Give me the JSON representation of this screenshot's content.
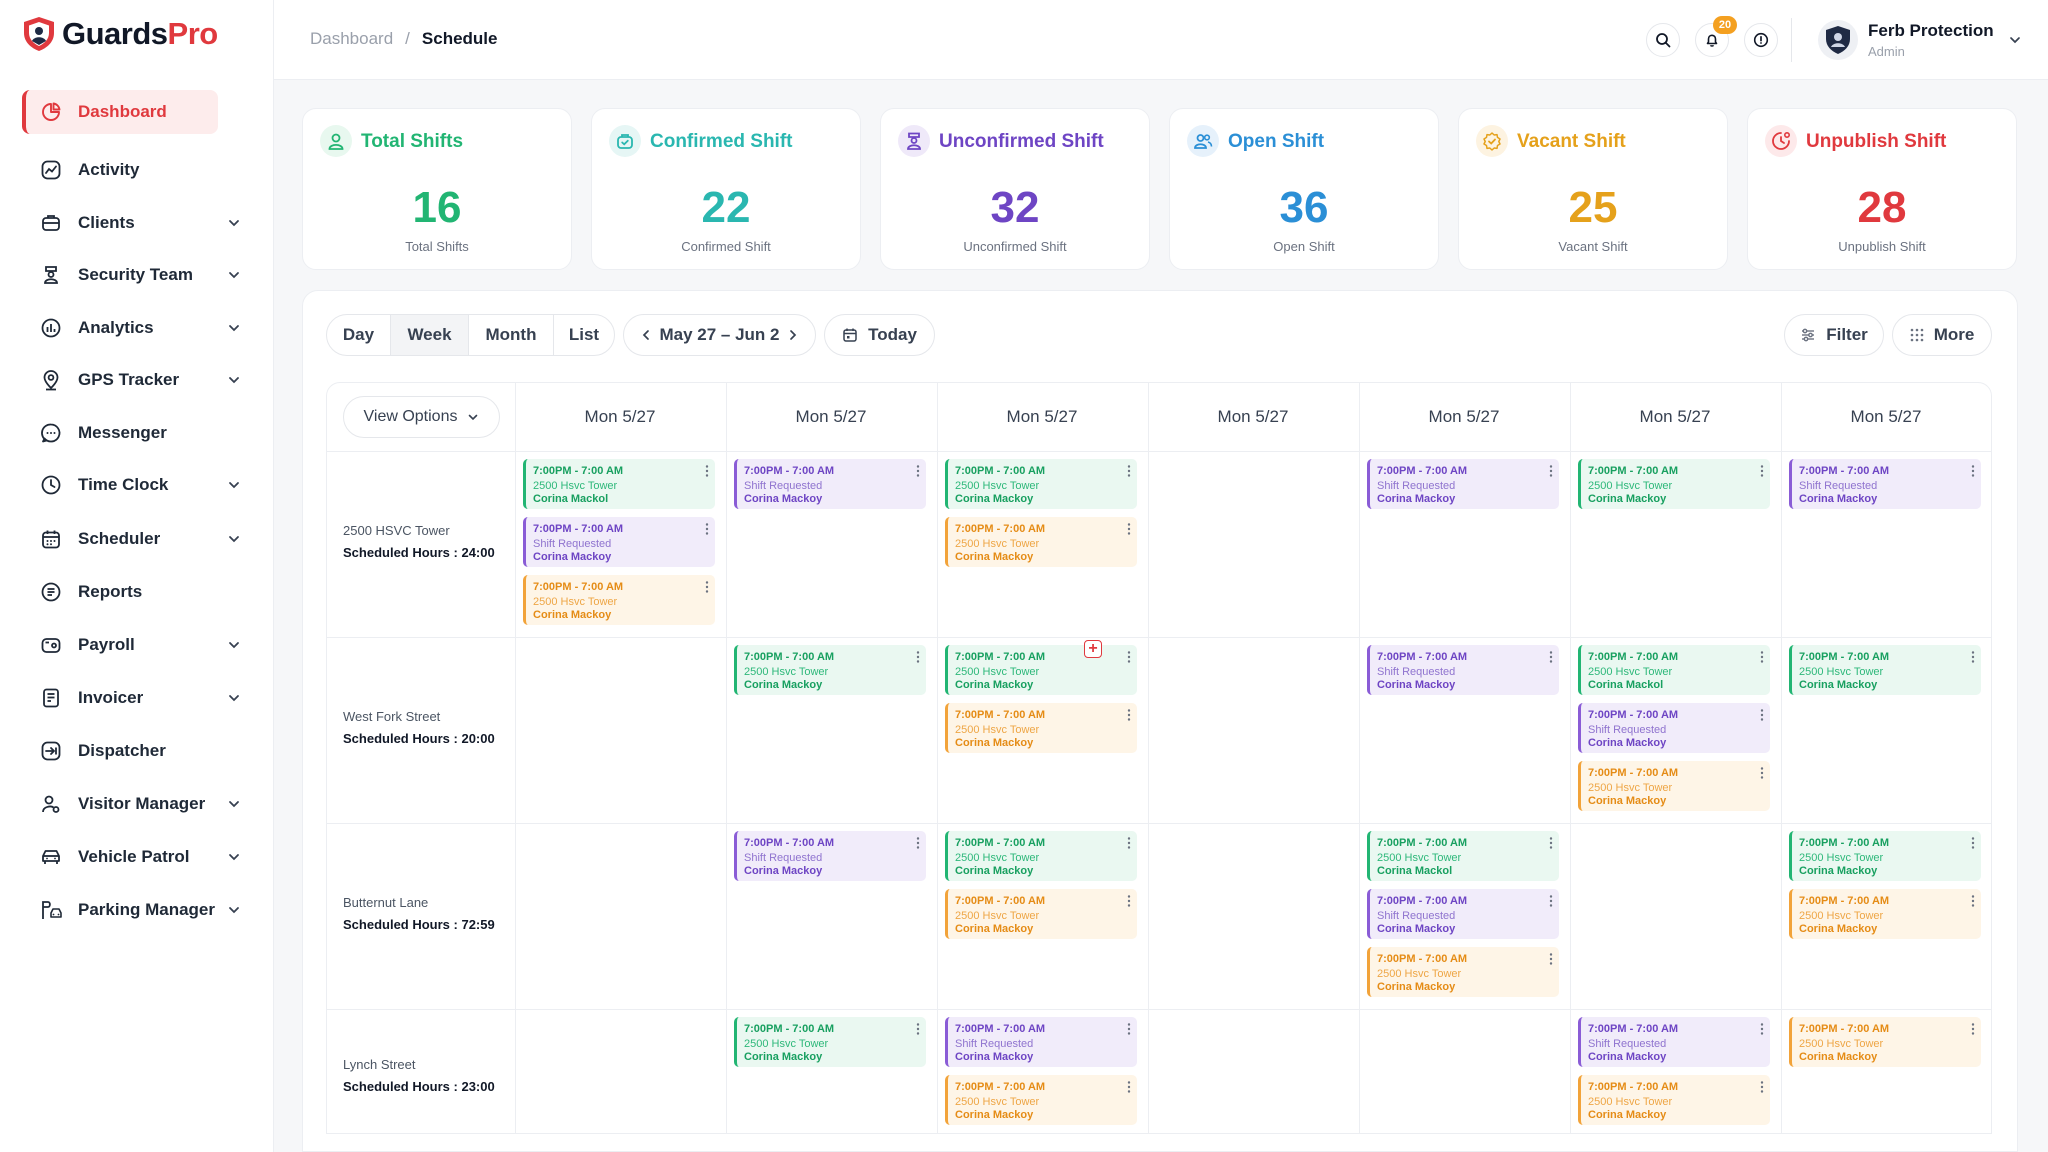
{
  "app": {
    "name_main": "Guards",
    "name_accent": "Pro"
  },
  "sidebar": {
    "items": [
      {
        "label": "Dashboard",
        "icon": "dashboard-icon"
      },
      {
        "label": "Activity",
        "icon": "activity-icon"
      },
      {
        "label": "Clients",
        "icon": "clients-icon"
      },
      {
        "label": "Security Team",
        "icon": "security-team-icon"
      },
      {
        "label": "Analytics",
        "icon": "analytics-icon"
      },
      {
        "label": "GPS Tracker",
        "icon": "gps-icon"
      },
      {
        "label": "Messenger",
        "icon": "messenger-icon"
      },
      {
        "label": "Time Clock",
        "icon": "clock-icon"
      },
      {
        "label": "Scheduler",
        "icon": "calendar-icon"
      },
      {
        "label": "Reports",
        "icon": "reports-icon"
      },
      {
        "label": "Payroll",
        "icon": "payroll-icon"
      },
      {
        "label": "Invoicer",
        "icon": "invoice-icon"
      },
      {
        "label": "Dispatcher",
        "icon": "dispatch-icon"
      },
      {
        "label": "Visitor Manager",
        "icon": "visitor-icon"
      },
      {
        "label": "Vehicle Patrol",
        "icon": "vehicle-icon"
      },
      {
        "label": "Parking Manager",
        "icon": "parking-icon"
      }
    ]
  },
  "breadcrumb": {
    "parent": "Dashboard",
    "separator": "/",
    "current": "Schedule"
  },
  "header": {
    "notification_count": "20",
    "user_name": "Ferb Protection",
    "user_role": "Admin"
  },
  "stats": [
    {
      "title": "Total Shifts",
      "value": "16",
      "sub": "Total Shifts",
      "color": "#22b573"
    },
    {
      "title": "Confirmed Shift",
      "value": "22",
      "sub": "Confirmed Shift",
      "color": "#2ab7b0"
    },
    {
      "title": "Unconfirmed Shift",
      "value": "32",
      "sub": "Unconfirmed Shift",
      "color": "#6e45c4"
    },
    {
      "title": "Open Shift",
      "value": "36",
      "sub": "Open Shift",
      "color": "#2b8fd6"
    },
    {
      "title": "Vacant Shift",
      "value": "25",
      "sub": "Vacant Shift",
      "color": "#e5a11b"
    },
    {
      "title": "Unpublish Shift",
      "value": "28",
      "sub": "Unpublish Shift",
      "color": "#e0393e"
    }
  ],
  "toolbar": {
    "views": [
      "Day",
      "Week",
      "Month",
      "List"
    ],
    "active_view": "Week",
    "range": "May 27 – Jun 2",
    "today": "Today",
    "filter": "Filter",
    "more": "More",
    "view_options": "View Options"
  },
  "days": [
    "Mon 5/27",
    "Mon 5/27",
    "Mon 5/27",
    "Mon 5/27",
    "Mon 5/27",
    "Mon 5/27",
    "Mon 5/27"
  ],
  "sites": [
    {
      "name": "2500 HSVC Tower",
      "hours": "Scheduled Hours : 24:00"
    },
    {
      "name": "West Fork Street",
      "hours": "Scheduled Hours : 20:00"
    },
    {
      "name": "Butternut Lane",
      "hours": "Scheduled Hours : 72:59"
    },
    {
      "name": "Lynch Street",
      "hours": "Scheduled Hours : 23:00"
    }
  ],
  "shifts": [
    {
      "row": 0,
      "col": 0,
      "slot": 0,
      "type": "green",
      "time": "7:00PM - 7:00 AM",
      "sub": "2500 Hsvc Tower",
      "name": "Corina Mackol"
    },
    {
      "row": 0,
      "col": 0,
      "slot": 1,
      "type": "purple",
      "time": "7:00PM - 7:00 AM",
      "sub": "Shift Requested",
      "name": "Corina Mackoy"
    },
    {
      "row": 0,
      "col": 0,
      "slot": 2,
      "type": "orange",
      "time": "7:00PM - 7:00 AM",
      "sub": "2500 Hsvc Tower",
      "name": "Corina Mackoy"
    },
    {
      "row": 0,
      "col": 1,
      "slot": 0,
      "type": "purple",
      "time": "7:00PM - 7:00 AM",
      "sub": "Shift Requested",
      "name": "Corina Mackoy"
    },
    {
      "row": 0,
      "col": 2,
      "slot": 0,
      "type": "green",
      "time": "7:00PM - 7:00 AM",
      "sub": "2500 Hsvc Tower",
      "name": "Corina Mackoy"
    },
    {
      "row": 0,
      "col": 2,
      "slot": 1,
      "type": "orange",
      "time": "7:00PM - 7:00 AM",
      "sub": "2500 Hsvc Tower",
      "name": "Corina Mackoy"
    },
    {
      "row": 0,
      "col": 4,
      "slot": 0,
      "type": "purple",
      "time": "7:00PM - 7:00 AM",
      "sub": "Shift Requested",
      "name": "Corina Mackoy"
    },
    {
      "row": 0,
      "col": 5,
      "slot": 0,
      "type": "green",
      "time": "7:00PM - 7:00 AM",
      "sub": "2500 Hsvc Tower",
      "name": "Corina Mackoy"
    },
    {
      "row": 0,
      "col": 6,
      "slot": 0,
      "type": "purple",
      "time": "7:00PM - 7:00 AM",
      "sub": "Shift Requested",
      "name": "Corina Mackoy"
    },
    {
      "row": 1,
      "col": 1,
      "slot": 0,
      "type": "green",
      "time": "7:00PM - 7:00 AM",
      "sub": "2500 Hsvc Tower",
      "name": "Corina Mackoy"
    },
    {
      "row": 1,
      "col": 2,
      "slot": 0,
      "type": "green",
      "time": "7:00PM - 7:00 AM",
      "sub": "2500 Hsvc Tower",
      "name": "Corina Mackoy"
    },
    {
      "row": 1,
      "col": 2,
      "slot": 1,
      "type": "orange",
      "time": "7:00PM - 7:00 AM",
      "sub": "2500 Hsvc Tower",
      "name": "Corina Mackoy"
    },
    {
      "row": 1,
      "col": 4,
      "slot": 0,
      "type": "purple",
      "time": "7:00PM - 7:00 AM",
      "sub": "Shift Requested",
      "name": "Corina Mackoy"
    },
    {
      "row": 1,
      "col": 5,
      "slot": 0,
      "type": "green",
      "time": "7:00PM - 7:00 AM",
      "sub": "2500 Hsvc Tower",
      "name": "Corina Mackol"
    },
    {
      "row": 1,
      "col": 5,
      "slot": 1,
      "type": "purple",
      "time": "7:00PM - 7:00 AM",
      "sub": "Shift Requested",
      "name": "Corina Mackoy"
    },
    {
      "row": 1,
      "col": 5,
      "slot": 2,
      "type": "orange",
      "time": "7:00PM - 7:00 AM",
      "sub": "2500 Hsvc Tower",
      "name": "Corina Mackoy"
    },
    {
      "row": 1,
      "col": 6,
      "slot": 0,
      "type": "green",
      "time": "7:00PM - 7:00 AM",
      "sub": "2500 Hsvc Tower",
      "name": "Corina Mackoy"
    },
    {
      "row": 2,
      "col": 1,
      "slot": 0,
      "type": "purple",
      "time": "7:00PM - 7:00 AM",
      "sub": "Shift Requested",
      "name": "Corina Mackoy"
    },
    {
      "row": 2,
      "col": 2,
      "slot": 0,
      "type": "green",
      "time": "7:00PM - 7:00 AM",
      "sub": "2500 Hsvc Tower",
      "name": "Corina Mackoy"
    },
    {
      "row": 2,
      "col": 2,
      "slot": 1,
      "type": "orange",
      "time": "7:00PM - 7:00 AM",
      "sub": "2500 Hsvc Tower",
      "name": "Corina Mackoy"
    },
    {
      "row": 2,
      "col": 4,
      "slot": 0,
      "type": "green",
      "time": "7:00PM - 7:00 AM",
      "sub": "2500 Hsvc Tower",
      "name": "Corina Mackol"
    },
    {
      "row": 2,
      "col": 4,
      "slot": 1,
      "type": "purple",
      "time": "7:00PM - 7:00 AM",
      "sub": "Shift Requested",
      "name": "Corina Mackoy"
    },
    {
      "row": 2,
      "col": 4,
      "slot": 2,
      "type": "orange",
      "time": "7:00PM - 7:00 AM",
      "sub": "2500 Hsvc Tower",
      "name": "Corina Mackoy"
    },
    {
      "row": 2,
      "col": 6,
      "slot": 0,
      "type": "green",
      "time": "7:00PM - 7:00 AM",
      "sub": "2500 Hsvc Tower",
      "name": "Corina Mackoy"
    },
    {
      "row": 2,
      "col": 6,
      "slot": 1,
      "type": "orange",
      "time": "7:00PM - 7:00 AM",
      "sub": "2500 Hsvc Tower",
      "name": "Corina Mackoy"
    },
    {
      "row": 3,
      "col": 1,
      "slot": 0,
      "type": "green",
      "time": "7:00PM - 7:00 AM",
      "sub": "2500 Hsvc Tower",
      "name": "Corina Mackoy"
    },
    {
      "row": 3,
      "col": 2,
      "slot": 0,
      "type": "purple",
      "time": "7:00PM - 7:00 AM",
      "sub": "Shift Requested",
      "name": "Corina Mackoy"
    },
    {
      "row": 3,
      "col": 2,
      "slot": 1,
      "type": "orange",
      "time": "7:00PM - 7:00 AM",
      "sub": "2500 Hsvc Tower",
      "name": "Corina Mackoy"
    },
    {
      "row": 3,
      "col": 5,
      "slot": 0,
      "type": "purple",
      "time": "7:00PM - 7:00 AM",
      "sub": "Shift Requested",
      "name": "Corina Mackoy"
    },
    {
      "row": 3,
      "col": 5,
      "slot": 1,
      "type": "orange",
      "time": "7:00PM - 7:00 AM",
      "sub": "2500 Hsvc Tower",
      "name": "Corina Mackoy"
    },
    {
      "row": 3,
      "col": 6,
      "slot": 0,
      "type": "orange",
      "time": "7:00PM - 7:00 AM",
      "sub": "2500 Hsvc Tower",
      "name": "Corina Mackoy"
    }
  ],
  "colors": {
    "accent": "#e0393e",
    "green": "#22b573",
    "purple": "#8a5cd6",
    "orange": "#f2a33a"
  }
}
